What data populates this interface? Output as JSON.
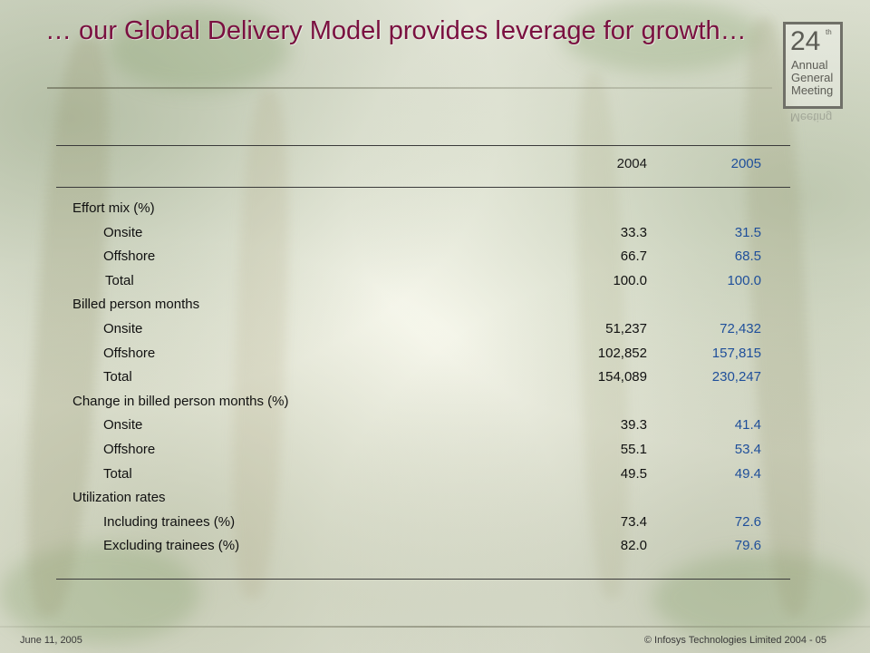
{
  "title": "… our Global Delivery Model provides leverage for growth…",
  "logo": {
    "number": "24",
    "superscript": "th",
    "line1": "Annual",
    "line2": "General",
    "line3": "Meeting"
  },
  "table": {
    "headers": [
      "2004",
      "2005"
    ],
    "rows": [
      {
        "label": "Effort mix (%)",
        "kind": "section",
        "v2004": "",
        "v2005": ""
      },
      {
        "label": "Onsite",
        "kind": "sub",
        "v2004": "33.3",
        "v2005": "31.5"
      },
      {
        "label": "Offshore",
        "kind": "sub",
        "v2004": "66.7",
        "v2005": "68.5"
      },
      {
        "label": "Total",
        "kind": "total",
        "v2004": "100.0",
        "v2005": "100.0"
      },
      {
        "label": "Billed person months",
        "kind": "section",
        "v2004": "",
        "v2005": ""
      },
      {
        "label": "Onsite",
        "kind": "sub",
        "v2004": "51,237",
        "v2005": "72,432"
      },
      {
        "label": "Offshore",
        "kind": "sub",
        "v2004": "102,852",
        "v2005": "157,815"
      },
      {
        "label": "Total",
        "kind": "sub",
        "v2004": "154,089",
        "v2005": "230,247"
      },
      {
        "label": "Change in billed person months (%)",
        "kind": "section",
        "v2004": "",
        "v2005": ""
      },
      {
        "label": "Onsite",
        "kind": "sub",
        "v2004": "39.3",
        "v2005": "41.4"
      },
      {
        "label": "Offshore",
        "kind": "sub",
        "v2004": "55.1",
        "v2005": "53.4"
      },
      {
        "label": "Total",
        "kind": "sub",
        "v2004": "49.5",
        "v2005": "49.4"
      },
      {
        "label": "Utilization rates",
        "kind": "section",
        "v2004": "",
        "v2005": ""
      },
      {
        "label": "Including trainees (%)",
        "kind": "sub",
        "v2004": "73.4",
        "v2005": "72.6"
      },
      {
        "label": "Excluding trainees (%)",
        "kind": "sub",
        "v2004": "82.0",
        "v2005": "79.6"
      }
    ]
  },
  "footer": {
    "date": "June 11, 2005",
    "copyright": "© Infosys Technologies Limited 2004 - 05"
  },
  "colors": {
    "title": "#7a1040",
    "value_2005": "#1f4f9a"
  }
}
